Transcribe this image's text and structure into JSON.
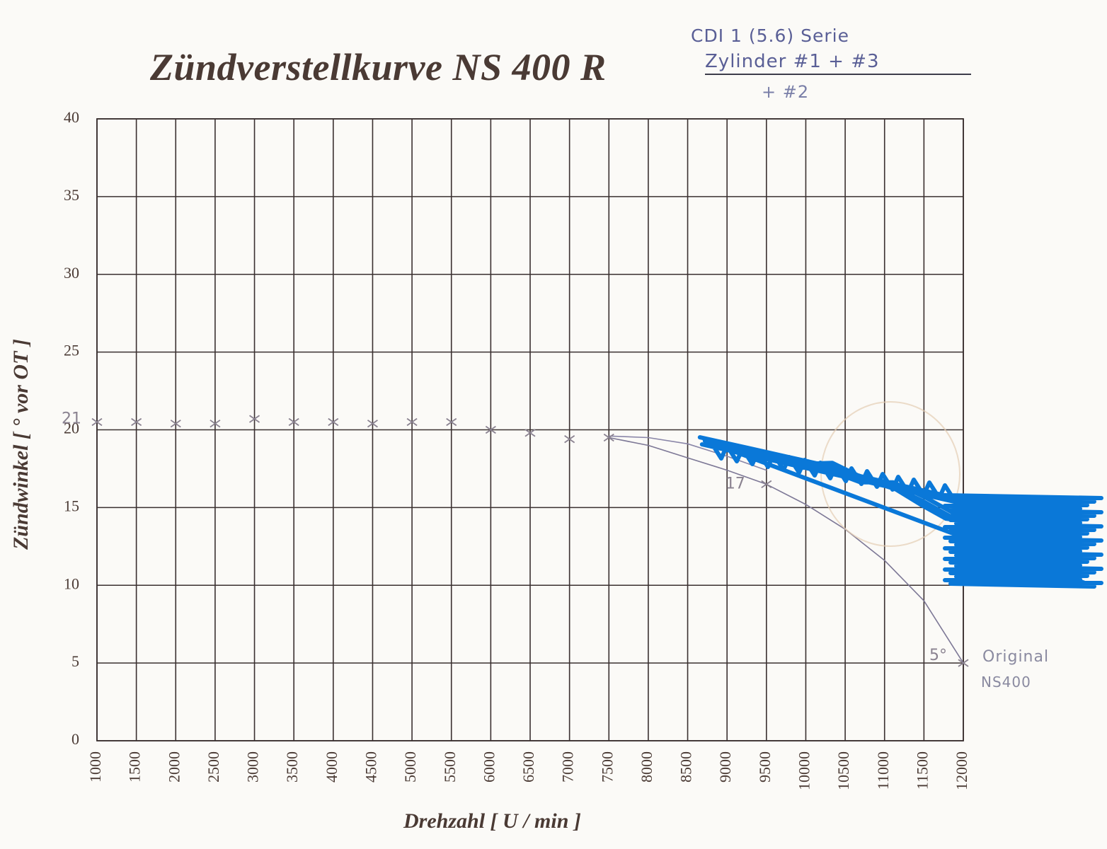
{
  "page_title": "Zündverstellkurve NS 400 R",
  "handwritten_notes": {
    "line1": "CDI 1 (5.6) Serie",
    "line2": "Zylinder #1 + #3",
    "line3": "+ #2",
    "original_line1": "Original",
    "original_line2": "NS400"
  },
  "colors": {
    "grid": "#3a3030",
    "printed_text": "#4a3a34",
    "pencil": "#8a8290",
    "pen_blue": "#5a5f96",
    "scribble": "#0a78d8"
  },
  "chart_data": {
    "type": "line",
    "title": "Zündverstellkurve NS 400 R",
    "xlabel": "Drehzahl  [ U / min ]",
    "ylabel": "Zündwinkel  [ ° vor OT ]",
    "xlim": [
      1000,
      12000
    ],
    "ylim": [
      0,
      40
    ],
    "x_ticks": [
      "1000",
      "1500",
      "2000",
      "2500",
      "3000",
      "3500",
      "4000",
      "4500",
      "5000",
      "5500",
      "6000",
      "6500",
      "7000",
      "7500",
      "8000",
      "8500",
      "9000",
      "9500",
      "10000",
      "10500",
      "11000",
      "11500",
      "12000"
    ],
    "y_ticks": [
      "0",
      "5",
      "10",
      "15",
      "20",
      "25",
      "30",
      "35",
      "40"
    ],
    "grid": true,
    "series": [
      {
        "name": "Original NS400",
        "marker": "x",
        "points": [
          {
            "x": 1000,
            "y": 20.5
          },
          {
            "x": 1500,
            "y": 20.5
          },
          {
            "x": 2000,
            "y": 20.4
          },
          {
            "x": 2500,
            "y": 20.4
          },
          {
            "x": 3000,
            "y": 20.7
          },
          {
            "x": 3500,
            "y": 20.5
          },
          {
            "x": 4000,
            "y": 20.5
          },
          {
            "x": 4500,
            "y": 20.4
          },
          {
            "x": 5000,
            "y": 20.5
          },
          {
            "x": 5500,
            "y": 20.5
          },
          {
            "x": 6000,
            "y": 20.0
          },
          {
            "x": 6500,
            "y": 19.8
          },
          {
            "x": 7000,
            "y": 19.4
          },
          {
            "x": 7500,
            "y": 19.5
          },
          {
            "x": 9500,
            "y": 16.5
          },
          {
            "x": 12000,
            "y": 5.0
          }
        ],
        "curve": [
          {
            "x": 7500,
            "y": 19.5
          },
          {
            "x": 8000,
            "y": 19.0
          },
          {
            "x": 8500,
            "y": 18.2
          },
          {
            "x": 9000,
            "y": 17.4
          },
          {
            "x": 9500,
            "y": 16.5
          },
          {
            "x": 10000,
            "y": 15.2
          },
          {
            "x": 10500,
            "y": 13.6
          },
          {
            "x": 11000,
            "y": 11.6
          },
          {
            "x": 11500,
            "y": 9.0
          },
          {
            "x": 12000,
            "y": 5.0
          }
        ]
      },
      {
        "name": "",
        "curve": [
          {
            "x": 7500,
            "y": 19.6
          },
          {
            "x": 8000,
            "y": 19.5
          },
          {
            "x": 8500,
            "y": 19.1
          },
          {
            "x": 9000,
            "y": 18.3
          },
          {
            "x": 9500,
            "y": 17.4
          }
        ]
      }
    ],
    "annotations": [
      {
        "text": "21",
        "x": 1000,
        "y": 20.5
      },
      {
        "text": "17",
        "x": 9500,
        "y": 16.5
      },
      {
        "text": "5°",
        "x": 12000,
        "y": 5.0
      }
    ],
    "redaction_path": [
      {
        "x": 8700,
        "y": 19.2
      },
      {
        "x": 9300,
        "y": 18.6
      },
      {
        "x": 9800,
        "y": 18.1
      },
      {
        "x": 10300,
        "y": 17.6
      },
      {
        "x": 10700,
        "y": 16.9
      },
      {
        "x": 11100,
        "y": 16.3
      },
      {
        "x": 11500,
        "y": 15.4
      },
      {
        "x": 11800,
        "y": 14.6
      },
      {
        "x": 12100,
        "y": 13.8
      },
      {
        "x": 12400,
        "y": 13.0
      },
      {
        "x": 12700,
        "y": 12.2
      },
      {
        "x": 12900,
        "y": 11.6
      },
      {
        "x": 12600,
        "y": 12.8
      },
      {
        "x": 12300,
        "y": 13.9
      },
      {
        "x": 12000,
        "y": 11.0
      },
      {
        "x": 12500,
        "y": 12.5
      },
      {
        "x": 12900,
        "y": 14.2
      }
    ]
  }
}
